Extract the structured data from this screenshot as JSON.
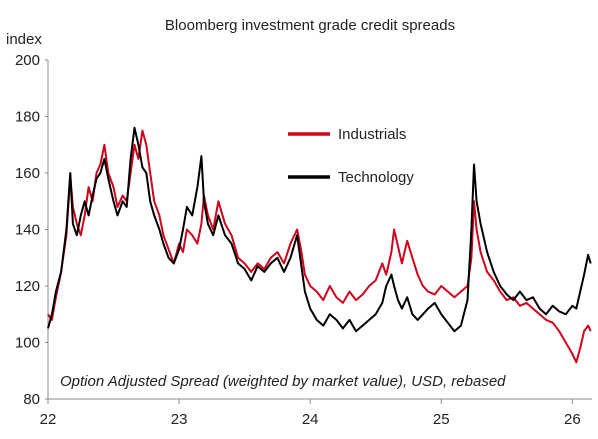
{
  "chart_data": {
    "type": "line",
    "title": "Bloomberg investment grade credit spreads",
    "ylabel": "index",
    "annotation": "Option Adjusted Spread (weighted by market value), USD, rebased",
    "ylim": [
      80,
      200
    ],
    "yticks": [
      "200",
      "180",
      "160",
      "140",
      "120",
      "100",
      "80"
    ],
    "xlim": [
      2022.0,
      2026.15
    ],
    "xticks": [
      {
        "value": 2022,
        "label": "22"
      },
      {
        "value": 2023,
        "label": "23"
      },
      {
        "value": 2024,
        "label": "24"
      },
      {
        "value": 2025,
        "label": "25"
      },
      {
        "value": 2026,
        "label": "26"
      }
    ],
    "legend_position": "upper-right",
    "grid": false,
    "series": [
      {
        "name": "Industrials",
        "color": "#d0021b",
        "points": [
          [
            2022.0,
            110
          ],
          [
            2022.03,
            108
          ],
          [
            2022.06,
            116
          ],
          [
            2022.1,
            125
          ],
          [
            2022.14,
            138
          ],
          [
            2022.17,
            159
          ],
          [
            2022.19,
            148
          ],
          [
            2022.22,
            142
          ],
          [
            2022.25,
            138
          ],
          [
            2022.28,
            145
          ],
          [
            2022.31,
            155
          ],
          [
            2022.34,
            150
          ],
          [
            2022.37,
            160
          ],
          [
            2022.4,
            163
          ],
          [
            2022.43,
            170
          ],
          [
            2022.46,
            160
          ],
          [
            2022.5,
            155
          ],
          [
            2022.53,
            148
          ],
          [
            2022.57,
            152
          ],
          [
            2022.6,
            150
          ],
          [
            2022.63,
            160
          ],
          [
            2022.66,
            170
          ],
          [
            2022.69,
            165
          ],
          [
            2022.72,
            175
          ],
          [
            2022.75,
            170
          ],
          [
            2022.78,
            160
          ],
          [
            2022.81,
            150
          ],
          [
            2022.85,
            145
          ],
          [
            2022.88,
            138
          ],
          [
            2022.92,
            133
          ],
          [
            2022.96,
            128
          ],
          [
            2023.0,
            135
          ],
          [
            2023.03,
            132
          ],
          [
            2023.06,
            140
          ],
          [
            2023.1,
            138
          ],
          [
            2023.14,
            135
          ],
          [
            2023.17,
            142
          ],
          [
            2023.19,
            152
          ],
          [
            2023.22,
            145
          ],
          [
            2023.26,
            140
          ],
          [
            2023.3,
            150
          ],
          [
            2023.35,
            142
          ],
          [
            2023.4,
            138
          ],
          [
            2023.45,
            130
          ],
          [
            2023.5,
            128
          ],
          [
            2023.55,
            125
          ],
          [
            2023.6,
            128
          ],
          [
            2023.65,
            126
          ],
          [
            2023.7,
            130
          ],
          [
            2023.75,
            132
          ],
          [
            2023.8,
            128
          ],
          [
            2023.85,
            135
          ],
          [
            2023.9,
            140
          ],
          [
            2023.93,
            133
          ],
          [
            2023.96,
            124
          ],
          [
            2024.0,
            120
          ],
          [
            2024.05,
            118
          ],
          [
            2024.1,
            115
          ],
          [
            2024.15,
            120
          ],
          [
            2024.2,
            116
          ],
          [
            2024.25,
            114
          ],
          [
            2024.3,
            118
          ],
          [
            2024.35,
            115
          ],
          [
            2024.4,
            117
          ],
          [
            2024.45,
            120
          ],
          [
            2024.5,
            122
          ],
          [
            2024.55,
            128
          ],
          [
            2024.58,
            124
          ],
          [
            2024.62,
            132
          ],
          [
            2024.64,
            140
          ],
          [
            2024.67,
            134
          ],
          [
            2024.7,
            128
          ],
          [
            2024.74,
            136
          ],
          [
            2024.78,
            130
          ],
          [
            2024.82,
            124
          ],
          [
            2024.86,
            120
          ],
          [
            2024.9,
            118
          ],
          [
            2024.95,
            117
          ],
          [
            2025.0,
            120
          ],
          [
            2025.05,
            118
          ],
          [
            2025.1,
            116
          ],
          [
            2025.15,
            118
          ],
          [
            2025.2,
            120
          ],
          [
            2025.23,
            130
          ],
          [
            2025.25,
            150
          ],
          [
            2025.27,
            140
          ],
          [
            2025.3,
            132
          ],
          [
            2025.35,
            125
          ],
          [
            2025.4,
            122
          ],
          [
            2025.45,
            118
          ],
          [
            2025.5,
            115
          ],
          [
            2025.55,
            116
          ],
          [
            2025.6,
            113
          ],
          [
            2025.65,
            114
          ],
          [
            2025.7,
            112
          ],
          [
            2025.75,
            110
          ],
          [
            2025.8,
            108
          ],
          [
            2025.85,
            107
          ],
          [
            2025.9,
            104
          ],
          [
            2025.95,
            100
          ],
          [
            2026.0,
            96
          ],
          [
            2026.03,
            93
          ],
          [
            2026.06,
            98
          ],
          [
            2026.09,
            104
          ],
          [
            2026.12,
            106
          ],
          [
            2026.14,
            104
          ]
        ]
      },
      {
        "name": "Technology",
        "color": "#000000",
        "points": [
          [
            2022.0,
            105
          ],
          [
            2022.03,
            110
          ],
          [
            2022.06,
            118
          ],
          [
            2022.1,
            125
          ],
          [
            2022.14,
            140
          ],
          [
            2022.17,
            160
          ],
          [
            2022.19,
            142
          ],
          [
            2022.22,
            138
          ],
          [
            2022.25,
            145
          ],
          [
            2022.28,
            150
          ],
          [
            2022.31,
            145
          ],
          [
            2022.34,
            152
          ],
          [
            2022.37,
            158
          ],
          [
            2022.4,
            160
          ],
          [
            2022.43,
            165
          ],
          [
            2022.46,
            158
          ],
          [
            2022.5,
            150
          ],
          [
            2022.53,
            145
          ],
          [
            2022.57,
            150
          ],
          [
            2022.6,
            148
          ],
          [
            2022.63,
            165
          ],
          [
            2022.66,
            176
          ],
          [
            2022.69,
            170
          ],
          [
            2022.72,
            162
          ],
          [
            2022.75,
            160
          ],
          [
            2022.78,
            150
          ],
          [
            2022.81,
            145
          ],
          [
            2022.85,
            140
          ],
          [
            2022.88,
            135
          ],
          [
            2022.92,
            130
          ],
          [
            2022.96,
            128
          ],
          [
            2023.0,
            133
          ],
          [
            2023.03,
            140
          ],
          [
            2023.06,
            148
          ],
          [
            2023.1,
            145
          ],
          [
            2023.14,
            155
          ],
          [
            2023.17,
            166
          ],
          [
            2023.19,
            150
          ],
          [
            2023.22,
            142
          ],
          [
            2023.26,
            138
          ],
          [
            2023.3,
            145
          ],
          [
            2023.35,
            138
          ],
          [
            2023.4,
            135
          ],
          [
            2023.45,
            128
          ],
          [
            2023.5,
            126
          ],
          [
            2023.55,
            122
          ],
          [
            2023.6,
            127
          ],
          [
            2023.65,
            125
          ],
          [
            2023.7,
            128
          ],
          [
            2023.75,
            130
          ],
          [
            2023.8,
            125
          ],
          [
            2023.85,
            130
          ],
          [
            2023.9,
            138
          ],
          [
            2023.93,
            128
          ],
          [
            2023.96,
            118
          ],
          [
            2024.0,
            112
          ],
          [
            2024.05,
            108
          ],
          [
            2024.1,
            106
          ],
          [
            2024.15,
            110
          ],
          [
            2024.2,
            108
          ],
          [
            2024.25,
            105
          ],
          [
            2024.3,
            108
          ],
          [
            2024.35,
            104
          ],
          [
            2024.4,
            106
          ],
          [
            2024.45,
            108
          ],
          [
            2024.5,
            110
          ],
          [
            2024.55,
            114
          ],
          [
            2024.58,
            120
          ],
          [
            2024.62,
            124
          ],
          [
            2024.64,
            120
          ],
          [
            2024.67,
            115
          ],
          [
            2024.7,
            112
          ],
          [
            2024.74,
            116
          ],
          [
            2024.78,
            110
          ],
          [
            2024.82,
            108
          ],
          [
            2024.86,
            110
          ],
          [
            2024.9,
            112
          ],
          [
            2024.95,
            114
          ],
          [
            2025.0,
            110
          ],
          [
            2025.05,
            107
          ],
          [
            2025.1,
            104
          ],
          [
            2025.15,
            106
          ],
          [
            2025.2,
            115
          ],
          [
            2025.23,
            140
          ],
          [
            2025.25,
            163
          ],
          [
            2025.27,
            150
          ],
          [
            2025.3,
            142
          ],
          [
            2025.35,
            132
          ],
          [
            2025.4,
            125
          ],
          [
            2025.45,
            120
          ],
          [
            2025.5,
            117
          ],
          [
            2025.55,
            115
          ],
          [
            2025.6,
            118
          ],
          [
            2025.65,
            115
          ],
          [
            2025.7,
            116
          ],
          [
            2025.75,
            112
          ],
          [
            2025.8,
            110
          ],
          [
            2025.85,
            113
          ],
          [
            2025.9,
            111
          ],
          [
            2025.95,
            110
          ],
          [
            2026.0,
            113
          ],
          [
            2026.03,
            112
          ],
          [
            2026.06,
            118
          ],
          [
            2026.09,
            124
          ],
          [
            2026.12,
            131
          ],
          [
            2026.14,
            128
          ]
        ]
      }
    ]
  }
}
